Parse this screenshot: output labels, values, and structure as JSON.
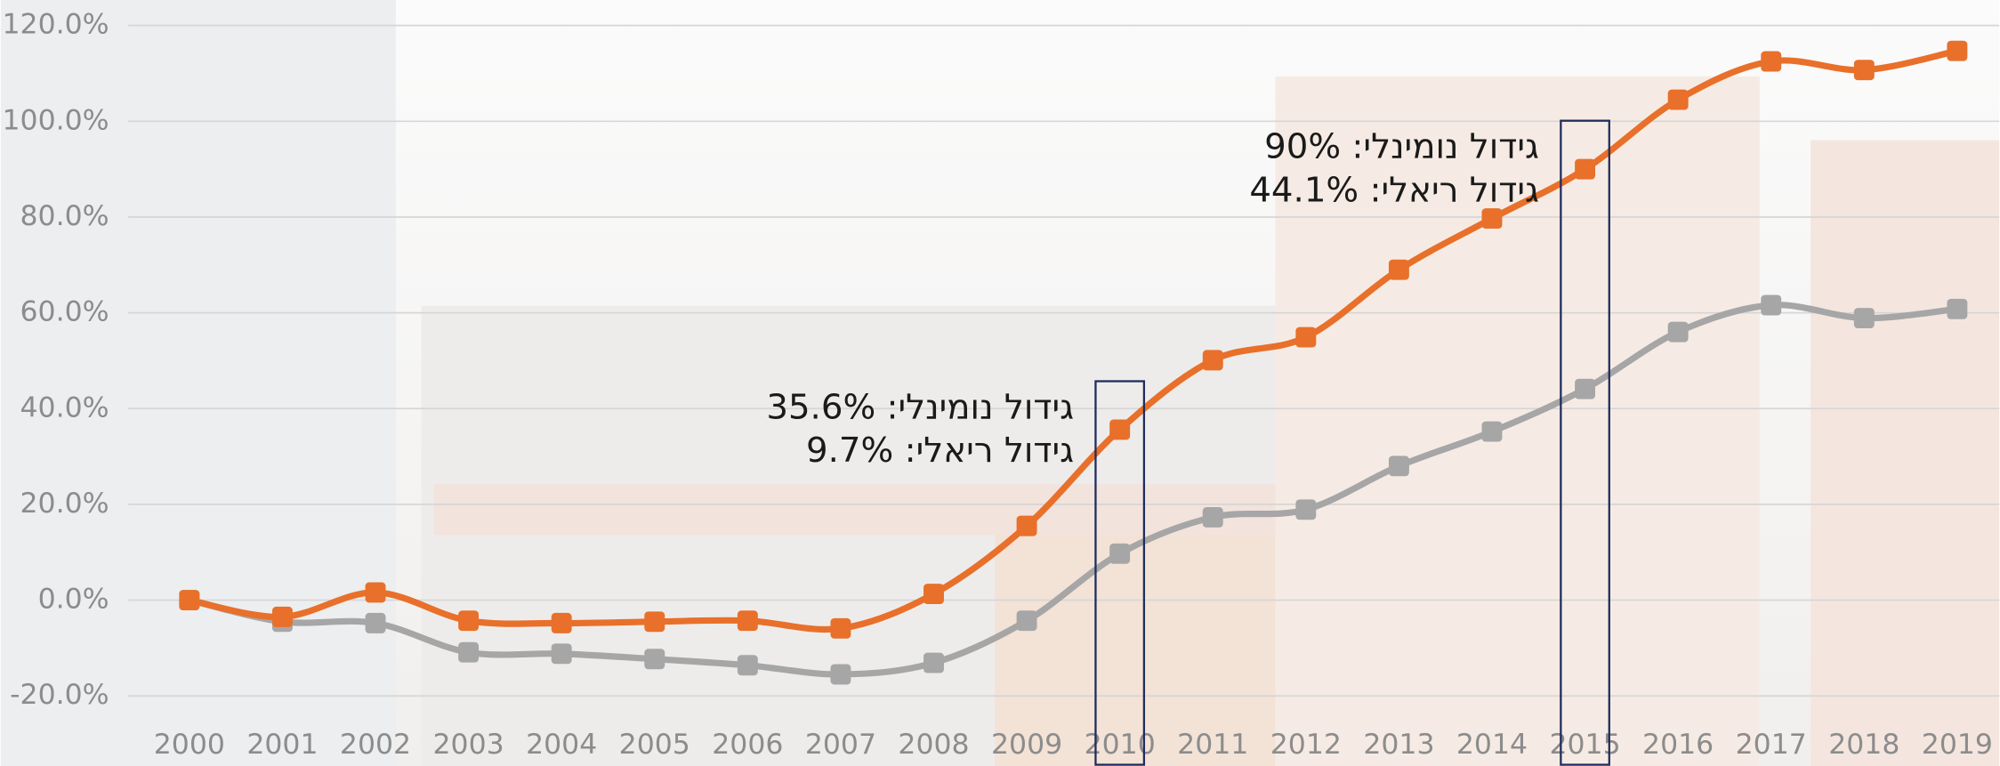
{
  "chart_data": {
    "type": "line",
    "categories": [
      "2000",
      "2001",
      "2002",
      "2003",
      "2004",
      "2005",
      "2006",
      "2007",
      "2008",
      "2009",
      "2010",
      "2011",
      "2012",
      "2013",
      "2014",
      "2015",
      "2016",
      "2017",
      "2018",
      "2019"
    ],
    "series": [
      {
        "color": "#e8702a",
        "values": [
          0,
          -3.5,
          1.6,
          -4.3,
          -4.8,
          -4.5,
          -4.3,
          -5.9,
          1.3,
          15.5,
          35.6,
          50.1,
          54.9,
          69,
          79.7,
          90,
          104.5,
          112.5,
          110.7,
          114.7
        ]
      },
      {
        "color": "#a6a6a6",
        "values": [
          0,
          -4.5,
          -4.8,
          -10.9,
          -11.2,
          -12.3,
          -13.6,
          -15.5,
          -13.1,
          -4.3,
          9.7,
          17.3,
          18.9,
          28,
          35.2,
          44.1,
          56,
          61.6,
          58.9,
          60.8
        ]
      }
    ],
    "ylim": [
      -20,
      120
    ],
    "yticks": [
      {
        "value": -20,
        "label": "-20.0%"
      },
      {
        "value": 0,
        "label": "0.0%"
      },
      {
        "value": 20,
        "label": "20.0%"
      },
      {
        "value": 40,
        "label": "40.0%"
      },
      {
        "value": 60,
        "label": "60.0%"
      },
      {
        "value": 80,
        "label": "80.0%"
      },
      {
        "value": 100,
        "label": "100.0%"
      },
      {
        "value": 120,
        "label": "120.0%"
      }
    ],
    "grid": true,
    "annotations": [
      {
        "category": "2010",
        "lines": [
          "גידול נומינלי: 35.6%",
          "גידול ריאלי: 9.7%"
        ]
      },
      {
        "category": "2015",
        "lines": [
          "גידול נומינלי: 90%",
          "גידול ריאלי: 44.1%"
        ]
      }
    ]
  }
}
